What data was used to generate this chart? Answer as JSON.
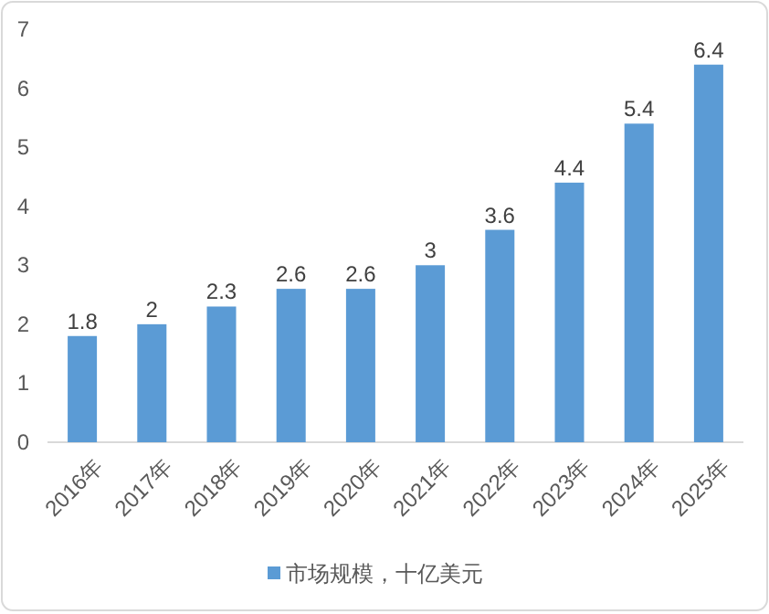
{
  "chart_data": {
    "type": "bar",
    "categories": [
      "2016年",
      "2017年",
      "2018年",
      "2019年",
      "2020年",
      "2021年",
      "2022年",
      "2023年",
      "2024年",
      "2025年"
    ],
    "series": [
      {
        "name": "市场规模，十亿美元",
        "color": "#5b9bd5",
        "values": [
          1.8,
          2,
          2.3,
          2.6,
          2.6,
          3,
          3.6,
          4.4,
          5.4,
          6.4
        ]
      }
    ],
    "ylim": [
      0,
      7
    ],
    "yticks": [
      0,
      1,
      2,
      3,
      4,
      5,
      6,
      7
    ],
    "data_labels": true,
    "legend": "bottom",
    "grid": false
  }
}
